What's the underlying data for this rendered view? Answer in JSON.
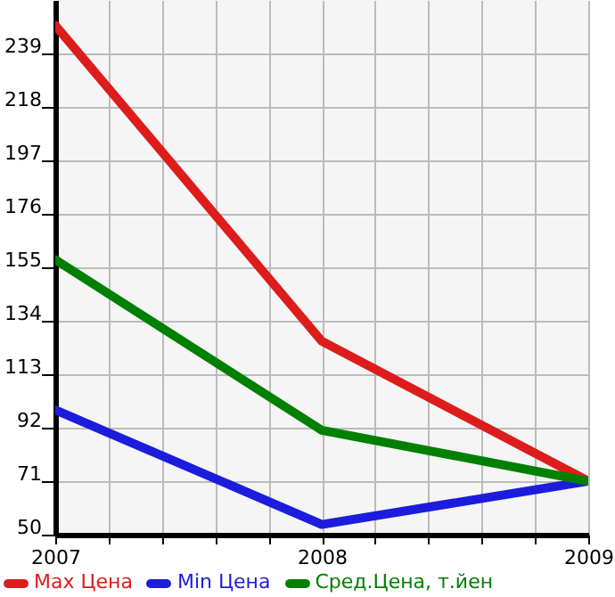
{
  "chart_data": {
    "type": "line",
    "x": [
      2007,
      2008,
      2009
    ],
    "series": [
      {
        "name": "Max Цена",
        "color": "#dd1c1c",
        "values": [
          250,
          126,
          71
        ]
      },
      {
        "name": "Min Цена",
        "color": "#1c1cdd",
        "values": [
          99,
          54,
          71
        ]
      },
      {
        "name": "Сред.Цена, т.йен",
        "color": "#008000",
        "values": [
          158,
          91,
          71
        ]
      }
    ],
    "xlim": [
      2007,
      2009
    ],
    "xticks": [
      2007,
      {
        "value": 2007.2,
        "label": null
      },
      {
        "value": 2007.4,
        "label": null
      },
      {
        "value": 2007.6,
        "label": null
      },
      {
        "value": 2007.8,
        "label": null
      },
      2008,
      {
        "value": 2008.2,
        "label": null
      },
      {
        "value": 2008.4,
        "label": null
      },
      {
        "value": 2008.6,
        "label": null
      },
      {
        "value": 2008.8,
        "label": null
      },
      2009
    ],
    "ylim": [
      50,
      260
    ],
    "yticks": [
      50,
      71,
      92,
      113,
      134,
      155,
      176,
      197,
      218,
      239
    ],
    "grid": true,
    "legend": "bottom",
    "marker": "none",
    "line_style": "solid"
  }
}
